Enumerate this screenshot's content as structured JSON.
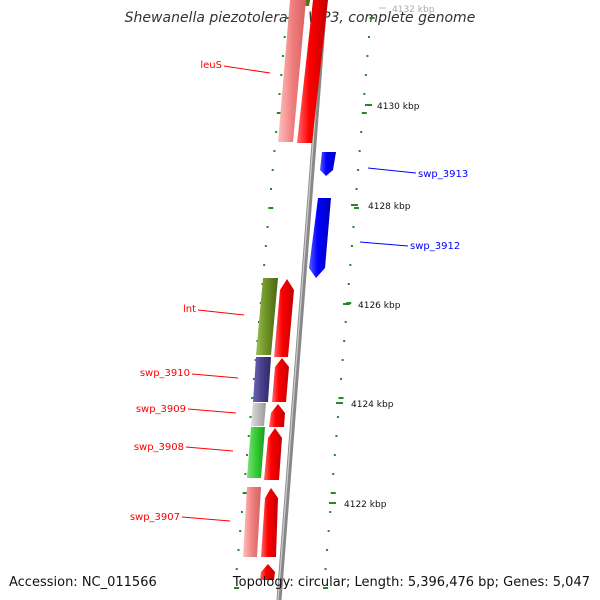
{
  "title": "Shewanella piezotolerans WP3, complete genome",
  "accession": "Accession: NC_011566",
  "summary": "Topology: circular; Length: 5,396,476 bp; Genes: 5,047",
  "scale": {
    "tick_color": "#228b22",
    "labels": [
      "4132 kbp",
      "4130 kbp",
      "4128 kbp",
      "4126 kbp",
      "4124 kbp",
      "4122 kbp"
    ]
  },
  "genes": {
    "leuS": {
      "label": "leuS",
      "color": "#ff0000"
    },
    "swp_3913": {
      "label": "swp_3913",
      "color": "#0000ff"
    },
    "swp_3912": {
      "label": "swp_3912",
      "color": "#0000ff"
    },
    "lnt": {
      "label": "lnt",
      "color": "#ff0000"
    },
    "swp_3910": {
      "label": "swp_3910",
      "color": "#ff0000"
    },
    "swp_3909": {
      "label": "swp_3909",
      "color": "#ff0000"
    },
    "swp_3908": {
      "label": "swp_3908",
      "color": "#ff0000"
    },
    "swp_3907": {
      "label": "swp_3907",
      "color": "#ff0000"
    }
  },
  "colors": {
    "backbone": "#888888",
    "forward_cds": "#ff0000",
    "reverse_cds": "#0000ff",
    "olive": "#6b8e23",
    "salmon": "#f08080",
    "slate": "#483d8b",
    "grey": "#bbbbbb",
    "green": "#33cc33"
  }
}
